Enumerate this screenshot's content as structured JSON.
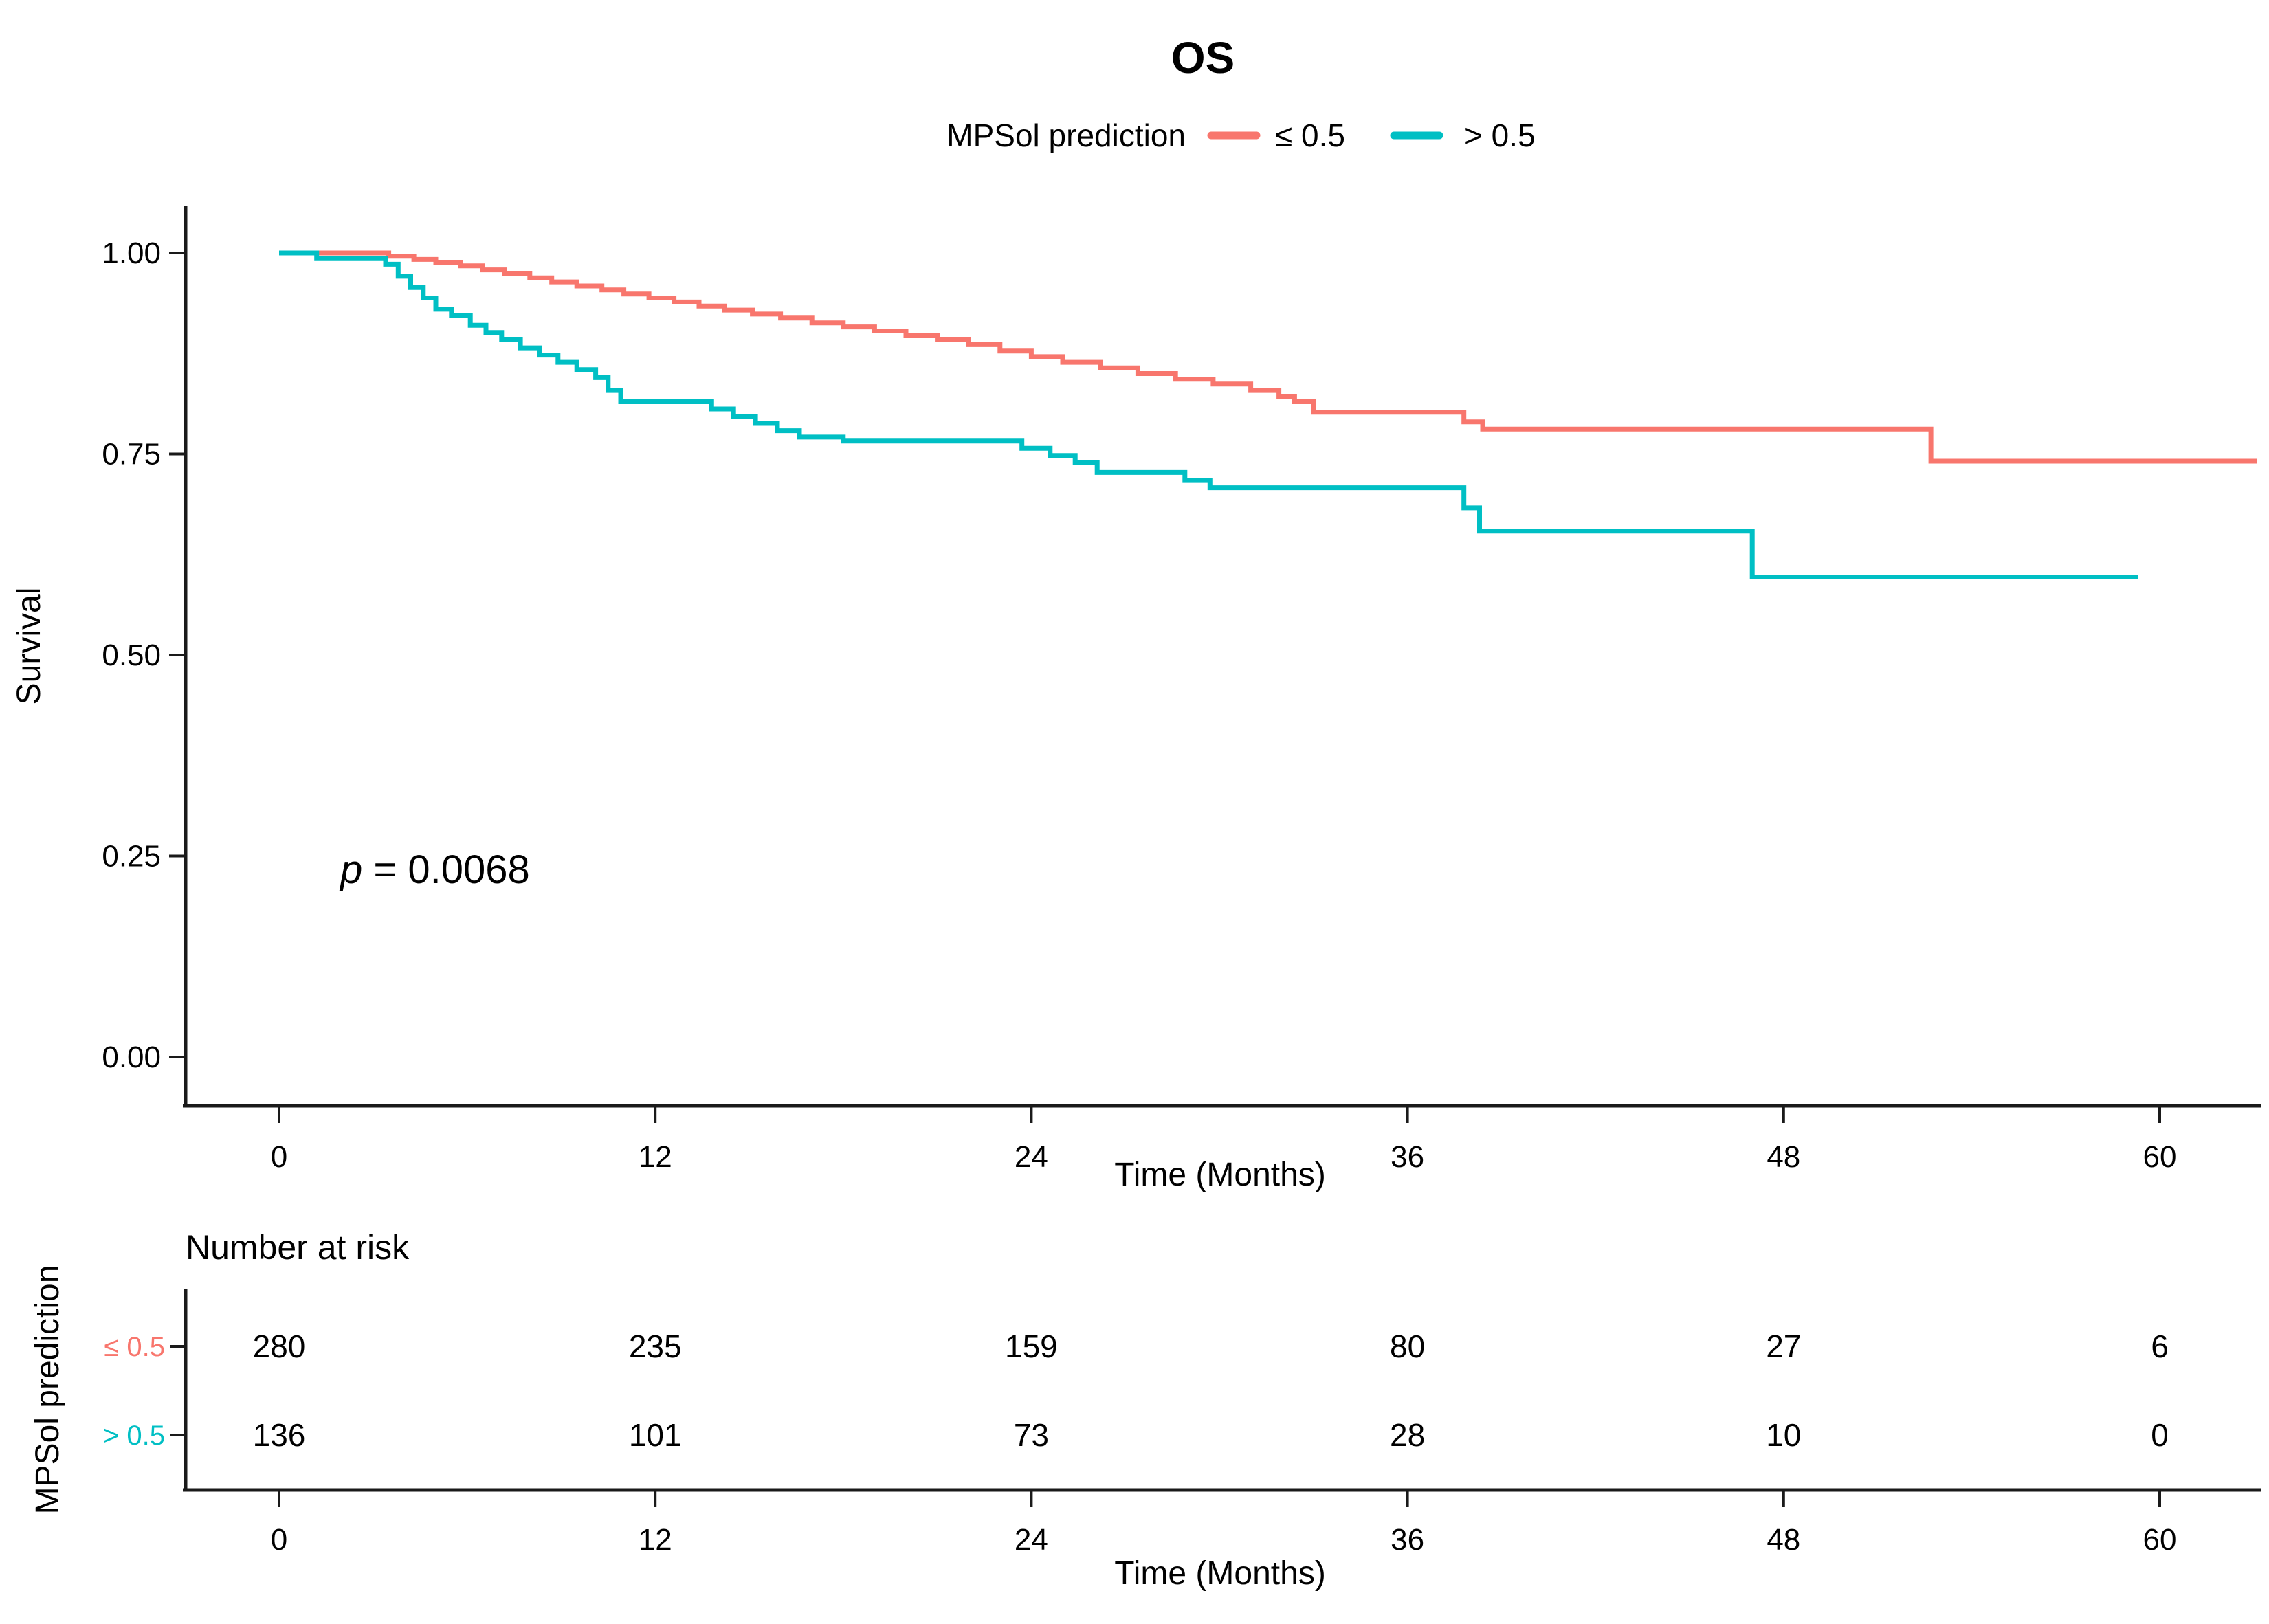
{
  "chart_data": {
    "type": "line",
    "subtype": "kaplan-meier-step",
    "title": "OS",
    "legend_title": "MPSol prediction",
    "x": {
      "label": "Time (Months)",
      "ticks": [
        0,
        12,
        24,
        36,
        48,
        60
      ],
      "range": [
        0,
        63.5
      ]
    },
    "y": {
      "label": "Survival",
      "tick_labels": [
        "1.00",
        "0.75",
        "0.50",
        "0.25",
        "0.00"
      ],
      "range": [
        0,
        1
      ]
    },
    "annotation": {
      "prefix": "p",
      "text": " = 0.0068"
    },
    "grid": "off",
    "legend_position": "top",
    "series": [
      {
        "name": "≤ 0.5",
        "color": "#F8766D",
        "end_time": 63.1,
        "steps": [
          [
            0,
            1.0
          ],
          [
            3.5,
            0.996
          ],
          [
            4.3,
            0.992
          ],
          [
            5.0,
            0.988
          ],
          [
            5.8,
            0.984
          ],
          [
            6.5,
            0.979
          ],
          [
            7.2,
            0.974
          ],
          [
            8.0,
            0.969
          ],
          [
            8.7,
            0.964
          ],
          [
            9.5,
            0.959
          ],
          [
            10.3,
            0.954
          ],
          [
            11.0,
            0.949
          ],
          [
            11.8,
            0.944
          ],
          [
            12.6,
            0.939
          ],
          [
            13.4,
            0.934
          ],
          [
            14.2,
            0.929
          ],
          [
            15.1,
            0.924
          ],
          [
            16.0,
            0.919
          ],
          [
            17.0,
            0.913
          ],
          [
            18.0,
            0.908
          ],
          [
            19.0,
            0.903
          ],
          [
            20.0,
            0.897
          ],
          [
            21.0,
            0.892
          ],
          [
            22.0,
            0.886
          ],
          [
            23.0,
            0.878
          ],
          [
            24.0,
            0.871
          ],
          [
            25.0,
            0.864
          ],
          [
            26.2,
            0.857
          ],
          [
            27.4,
            0.85
          ],
          [
            28.6,
            0.843
          ],
          [
            29.8,
            0.837
          ],
          [
            31.0,
            0.829
          ],
          [
            31.9,
            0.821
          ],
          [
            32.4,
            0.815
          ],
          [
            33.0,
            0.802
          ],
          [
            37.8,
            0.79
          ],
          [
            38.4,
            0.781
          ],
          [
            52.7,
            0.741
          ]
        ]
      },
      {
        "name": "> 0.5",
        "color": "#00BFC4",
        "end_time": 59.3,
        "steps": [
          [
            0,
            1.0
          ],
          [
            1.2,
            0.993
          ],
          [
            3.4,
            0.986
          ],
          [
            3.8,
            0.971
          ],
          [
            4.2,
            0.957
          ],
          [
            4.6,
            0.944
          ],
          [
            5.0,
            0.93
          ],
          [
            5.5,
            0.922
          ],
          [
            6.1,
            0.91
          ],
          [
            6.6,
            0.901
          ],
          [
            7.1,
            0.892
          ],
          [
            7.7,
            0.882
          ],
          [
            8.3,
            0.873
          ],
          [
            8.9,
            0.864
          ],
          [
            9.5,
            0.855
          ],
          [
            10.1,
            0.845
          ],
          [
            10.5,
            0.829
          ],
          [
            10.9,
            0.815
          ],
          [
            13.8,
            0.806
          ],
          [
            14.5,
            0.797
          ],
          [
            15.2,
            0.788
          ],
          [
            15.9,
            0.779
          ],
          [
            16.6,
            0.771
          ],
          [
            18.0,
            0.766
          ],
          [
            23.7,
            0.757
          ],
          [
            24.6,
            0.748
          ],
          [
            25.4,
            0.739
          ],
          [
            26.1,
            0.727
          ],
          [
            28.9,
            0.717
          ],
          [
            29.7,
            0.708
          ],
          [
            37.8,
            0.683
          ],
          [
            38.3,
            0.654
          ],
          [
            47.0,
            0.597
          ]
        ]
      }
    ],
    "risk_table": {
      "title": "Number at risk",
      "axis_label": "MPSol prediction",
      "x_label": "Time (Months)",
      "time_points": [
        0,
        12,
        24,
        36,
        48,
        60
      ],
      "rows": [
        {
          "label": "≤ 0.5",
          "color": "#F8766D",
          "counts": [
            280,
            235,
            159,
            80,
            27,
            6
          ]
        },
        {
          "label": "> 0.5",
          "color": "#00BFC4",
          "counts": [
            136,
            101,
            73,
            28,
            10,
            0
          ]
        }
      ]
    }
  }
}
